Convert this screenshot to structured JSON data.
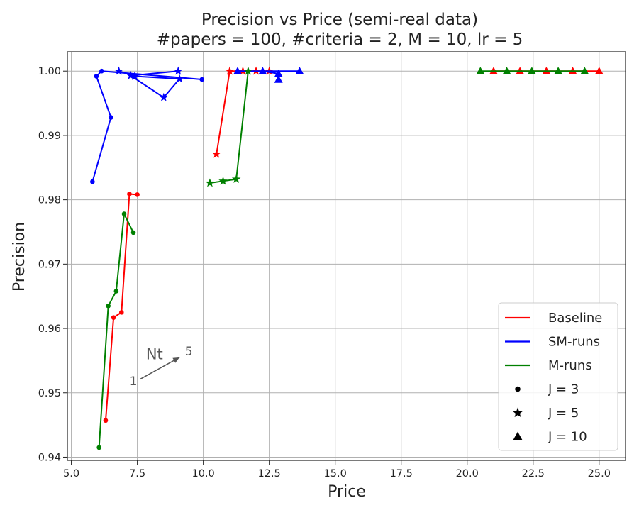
{
  "chart_data": {
    "type": "line",
    "title": "Precision vs Price (semi-real data)",
    "subtitle": "#papers = 100, #criteria = 2, M = 10, lr = 5",
    "xlabel": "Price",
    "ylabel": "Precision",
    "xlim": [
      4.85,
      26.0
    ],
    "ylim": [
      0.9395,
      1.003
    ],
    "xticks": [
      5.0,
      7.5,
      10.0,
      12.5,
      15.0,
      17.5,
      20.0,
      22.5,
      25.0
    ],
    "xtick_labels": [
      "5.0",
      "7.5",
      "10.0",
      "12.5",
      "15.0",
      "17.5",
      "20.0",
      "22.5",
      "25.0"
    ],
    "yticks": [
      0.94,
      0.95,
      0.96,
      0.97,
      0.98,
      0.99,
      1.0
    ],
    "ytick_labels": [
      "0.94",
      "0.95",
      "0.96",
      "0.97",
      "0.98",
      "0.99",
      "1.00"
    ],
    "grid": true,
    "legend_position": "bottom-right",
    "colors": {
      "baseline": "#ff0000",
      "sm_runs": "#0000ff",
      "m_runs": "#008000",
      "marker_legend": "#000000",
      "annotation": "#555555"
    },
    "series": [
      {
        "name": "Baseline",
        "group": "baseline",
        "marker": "dot",
        "x": [
          6.3,
          6.6,
          6.9,
          7.2,
          7.5
        ],
        "y": [
          0.9457,
          0.9617,
          0.9625,
          0.9809,
          0.9808
        ]
      },
      {
        "name": "Baseline",
        "group": "baseline",
        "marker": "star",
        "x": [
          10.5,
          11.0,
          11.5,
          12.0,
          12.5
        ],
        "y": [
          0.9871,
          1.0,
          1.0,
          1.0,
          1.0
        ]
      },
      {
        "name": "Baseline",
        "group": "baseline",
        "marker": "triangle",
        "x": [
          21.0,
          22.0,
          23.0,
          24.0,
          25.0
        ],
        "y": [
          1.0,
          1.0,
          1.0,
          1.0,
          1.0
        ]
      },
      {
        "name": "SM-runs",
        "group": "sm_runs",
        "marker": "dot",
        "x": [
          5.8,
          6.5,
          5.95,
          6.15,
          9.95
        ],
        "y": [
          0.9828,
          0.9928,
          0.9992,
          1.0,
          0.9987
        ]
      },
      {
        "name": "SM-runs",
        "group": "sm_runs",
        "marker": "star",
        "x": [
          6.8,
          7.4,
          9.1,
          8.5,
          7.25,
          9.05
        ],
        "y": [
          1.0,
          0.9992,
          0.9988,
          0.9959,
          0.9993,
          1.0
        ]
      },
      {
        "name": "SM-runs",
        "group": "sm_runs",
        "marker": "triangle",
        "x": [
          12.85,
          12.85,
          12.25,
          11.3,
          13.65
        ],
        "y": [
          0.9987,
          0.9996,
          1.0,
          1.0,
          1.0
        ]
      },
      {
        "name": "M-runs",
        "group": "m_runs",
        "marker": "dot",
        "x": [
          6.05,
          6.4,
          6.7,
          7.0,
          7.35
        ],
        "y": [
          0.9415,
          0.9635,
          0.9658,
          0.9778,
          0.9749
        ]
      },
      {
        "name": "M-runs",
        "group": "m_runs",
        "marker": "star",
        "x": [
          10.25,
          10.75,
          11.25,
          11.7
        ],
        "y": [
          0.9826,
          0.9829,
          0.9832,
          1.0
        ]
      },
      {
        "name": "M-runs",
        "group": "m_runs",
        "marker": "triangle",
        "x": [
          20.5,
          21.5,
          22.45,
          23.45,
          24.45
        ],
        "y": [
          1.0,
          1.0,
          1.0,
          1.0,
          1.0
        ]
      }
    ],
    "legend": {
      "lines": [
        {
          "label": "Baseline",
          "group": "baseline"
        },
        {
          "label": "SM-runs",
          "group": "sm_runs"
        },
        {
          "label": "M-runs",
          "group": "m_runs"
        }
      ],
      "markers": [
        {
          "label": "J = 3",
          "marker": "dot"
        },
        {
          "label": "J = 5",
          "marker": "star"
        },
        {
          "label": "J = 10",
          "marker": "triangle"
        }
      ]
    },
    "annotation": {
      "label": "Nt",
      "start_label": "1",
      "end_label": "5",
      "arrow_from": [
        7.6,
        0.9521
      ],
      "arrow_to": [
        9.1,
        0.9555
      ],
      "label_at": [
        8.15,
        0.9552
      ],
      "start_at": [
        7.35,
        0.9512
      ],
      "end_at": [
        9.45,
        0.9558
      ]
    }
  }
}
